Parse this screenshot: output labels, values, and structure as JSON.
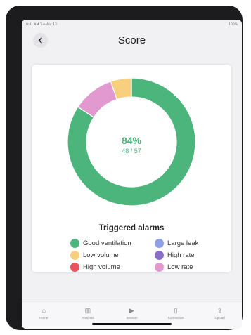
{
  "status": {
    "time": "9:41 AM",
    "date": "Tue Apr 12",
    "battery": "100%"
  },
  "header": {
    "title": "Score",
    "back_icon": "chevron-left-icon"
  },
  "score": {
    "percent": "84%",
    "fraction": "48 / 57",
    "accent": "#4cb57c"
  },
  "chart_data": {
    "type": "pie",
    "title": "",
    "slices": [
      {
        "label": "Good ventilation",
        "value": 48,
        "color": "#4cb57c"
      },
      {
        "label": "Large leak",
        "value": 0,
        "color": "#8ea0e6"
      },
      {
        "label": "Low volume",
        "value": 3,
        "color": "#f7cf7d"
      },
      {
        "label": "High rate",
        "value": 0,
        "color": "#8a6fc9"
      },
      {
        "label": "High volume",
        "value": 0,
        "color": "#e8535c"
      },
      {
        "label": "Low rate",
        "value": 6,
        "color": "#e199cf"
      }
    ],
    "draw_order": [
      "Good ventilation",
      "Low rate",
      "Low volume"
    ]
  },
  "legend": {
    "title": "Triggered alarms",
    "items": [
      {
        "label": "Good ventilation",
        "color": "#4cb57c"
      },
      {
        "label": "Large leak",
        "color": "#8ea0e6"
      },
      {
        "label": "Low volume",
        "color": "#f7cf7d"
      },
      {
        "label": "High rate",
        "color": "#8a6fc9"
      },
      {
        "label": "High volume",
        "color": "#e8535c"
      },
      {
        "label": "Low rate",
        "color": "#e199cf"
      }
    ]
  },
  "tabs": [
    {
      "label": "Home",
      "icon": "home-icon",
      "glyph": "⌂"
    },
    {
      "label": "Analysis",
      "icon": "chart-icon",
      "glyph": "▥"
    },
    {
      "label": "Session",
      "icon": "play-icon",
      "glyph": "▶"
    },
    {
      "label": "Connection",
      "icon": "device-icon",
      "glyph": "▯"
    },
    {
      "label": "Upload",
      "icon": "upload-icon",
      "glyph": "⇪"
    }
  ]
}
